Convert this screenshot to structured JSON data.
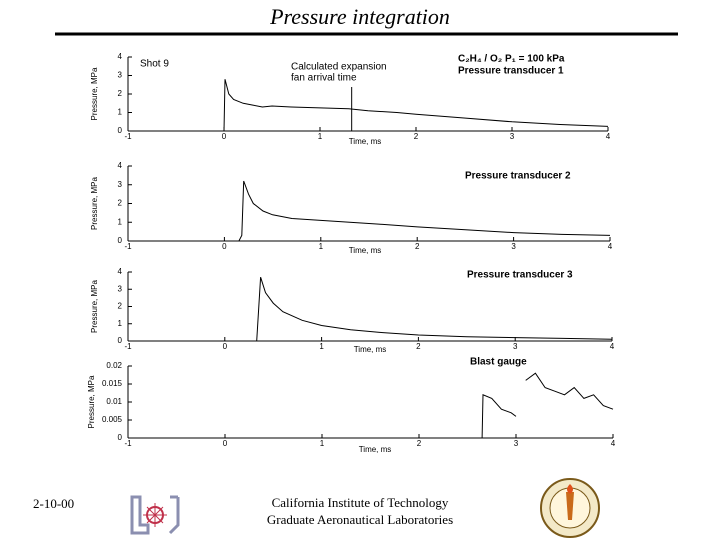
{
  "title": "Pressure integration",
  "footer": {
    "date": "2-10-00",
    "institute": "California Institute of Technology",
    "lab": "Graduate Aeronautical Laboratories"
  },
  "chart_data": [
    {
      "type": "line",
      "title": "Pressure transducer 1",
      "xlabel": "Time, ms",
      "ylabel": "Pressure, MPa",
      "annotations": [
        "Shot 9",
        "Calculated expansion",
        "fan arrival time",
        "C₂H₄ / O₂  P₁ = 100 kPa"
      ],
      "marker_x": 1.33,
      "x": [
        -1,
        -0.5,
        0,
        0.01,
        0.05,
        0.1,
        0.2,
        0.3,
        0.4,
        0.5,
        0.7,
        1.0,
        1.3,
        1.5,
        1.8,
        2.0,
        2.5,
        3.0,
        3.5,
        4.0
      ],
      "values": [
        0,
        0,
        0,
        2.8,
        2.0,
        1.7,
        1.5,
        1.4,
        1.3,
        1.35,
        1.3,
        1.25,
        1.2,
        1.1,
        1.0,
        0.9,
        0.7,
        0.5,
        0.35,
        0.25
      ],
      "color": "#000000",
      "xlim": [
        -1,
        4
      ],
      "ylim": [
        0,
        4
      ],
      "xticks": [
        -1,
        0,
        1,
        2,
        3,
        4
      ],
      "yticks": [
        0,
        1,
        2,
        3,
        4
      ]
    },
    {
      "type": "line",
      "title": "Pressure transducer 2",
      "xlabel": "Time, ms",
      "ylabel": "Pressure, MPa",
      "x": [
        -1,
        0,
        0.15,
        0.18,
        0.2,
        0.25,
        0.3,
        0.4,
        0.5,
        0.7,
        1.0,
        1.3,
        1.6,
        2.0,
        2.5,
        3.0,
        3.5,
        4.0
      ],
      "values": [
        0,
        0,
        0,
        0.3,
        3.2,
        2.5,
        2.0,
        1.6,
        1.4,
        1.2,
        1.1,
        1.0,
        0.9,
        0.75,
        0.6,
        0.45,
        0.35,
        0.3
      ],
      "color": "#000000",
      "xlim": [
        -1,
        4
      ],
      "ylim": [
        0,
        4
      ],
      "xticks": [
        -1,
        0,
        1,
        2,
        3,
        4
      ],
      "yticks": [
        0,
        1,
        2,
        3,
        4
      ]
    },
    {
      "type": "line",
      "title": "Pressure transducer 3",
      "xlabel": "Time, ms",
      "ylabel": "Pressure, MPa",
      "x": [
        -1,
        0,
        0.33,
        0.37,
        0.42,
        0.5,
        0.6,
        0.8,
        1.0,
        1.3,
        1.6,
        2.0,
        2.5,
        3.0,
        3.5,
        4.0
      ],
      "values": [
        0,
        0,
        0,
        3.7,
        2.8,
        2.2,
        1.7,
        1.2,
        0.9,
        0.65,
        0.5,
        0.35,
        0.25,
        0.2,
        0.15,
        0.1
      ],
      "color": "#000000",
      "xlim": [
        -1,
        4
      ],
      "ylim": [
        0,
        4
      ],
      "xticks": [
        -1,
        0,
        1,
        2,
        3,
        4
      ],
      "yticks": [
        0,
        1,
        2,
        3,
        4
      ]
    },
    {
      "type": "line",
      "title": "Blast gauge",
      "xlabel": "Time, ms",
      "ylabel": "Pressure, MPa",
      "x": [
        -1,
        0,
        1,
        2,
        2.65,
        2.66,
        2.75,
        2.85,
        2.95,
        3.0,
        3.05,
        3.1,
        3.2,
        3.3,
        3.4,
        3.5,
        3.6,
        3.7,
        3.8,
        3.9,
        4.0
      ],
      "values": [
        0,
        0,
        0,
        0,
        0,
        0.012,
        0.011,
        0.008,
        0.007,
        0.006,
        null,
        0.016,
        0.018,
        0.014,
        0.013,
        0.012,
        0.014,
        0.011,
        0.012,
        0.009,
        0.008
      ],
      "color": "#000000",
      "xlim": [
        -1,
        4
      ],
      "ylim": [
        0,
        0.02
      ],
      "xticks": [
        -1,
        0,
        1,
        2,
        3,
        4
      ],
      "yticks": [
        0,
        0.005,
        0.01,
        0.015,
        0.02
      ]
    }
  ]
}
